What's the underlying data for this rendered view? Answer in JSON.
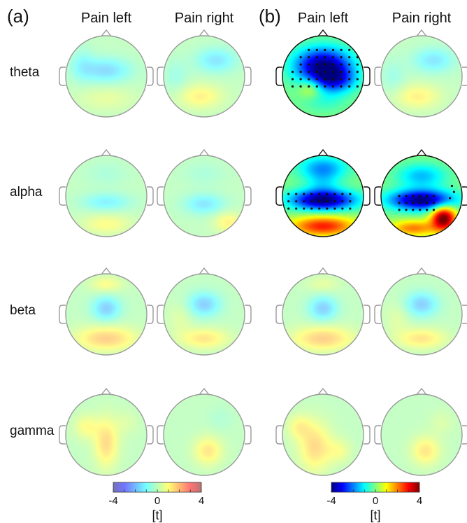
{
  "panels": [
    {
      "label": "(a)",
      "columns": [
        "Pain left",
        "Pain right"
      ]
    },
    {
      "label": "(b)",
      "columns": [
        "Pain left",
        "Pain right"
      ]
    }
  ],
  "rows": [
    "theta",
    "alpha",
    "beta",
    "gamma"
  ],
  "colorbar": {
    "ticks": [
      "-4",
      "0",
      "4"
    ],
    "unit": "[t]",
    "min": -4,
    "max": 4,
    "colormap": [
      "#00007f",
      "#0000ff",
      "#007fff",
      "#00ffff",
      "#7fff7f",
      "#ffff00",
      "#ff7f00",
      "#ff0000",
      "#7f0000"
    ]
  },
  "maps": [
    {
      "panel": 0,
      "row": 0,
      "col": 0,
      "significant": false,
      "blobs": [
        [
          0.0,
          -0.15,
          0.6,
          0.3,
          -1.6
        ],
        [
          0.0,
          0.55,
          0.7,
          0.3,
          0.6
        ],
        [
          -0.6,
          -0.3,
          0.3,
          0.4,
          -0.8
        ]
      ]
    },
    {
      "panel": 0,
      "row": 0,
      "col": 1,
      "significant": false,
      "blobs": [
        [
          0.3,
          -0.4,
          0.5,
          0.3,
          -1.4
        ],
        [
          -0.1,
          0.5,
          0.55,
          0.3,
          1.2
        ],
        [
          -0.7,
          0.0,
          0.3,
          0.4,
          -0.6
        ]
      ]
    },
    {
      "panel": 0,
      "row": 1,
      "col": 0,
      "significant": false,
      "blobs": [
        [
          0.0,
          0.15,
          0.6,
          0.22,
          -1.2
        ],
        [
          0.0,
          0.7,
          0.6,
          0.25,
          1.0
        ],
        [
          0.0,
          -0.55,
          0.5,
          0.3,
          -0.4
        ]
      ]
    },
    {
      "panel": 0,
      "row": 1,
      "col": 1,
      "significant": false,
      "blobs": [
        [
          0.0,
          0.2,
          0.5,
          0.25,
          -1.4
        ],
        [
          0.6,
          0.65,
          0.35,
          0.25,
          1.2
        ],
        [
          0.0,
          -0.55,
          0.5,
          0.3,
          -0.4
        ]
      ]
    },
    {
      "panel": 0,
      "row": 2,
      "col": 0,
      "significant": false,
      "blobs": [
        [
          0.0,
          -0.15,
          0.35,
          0.3,
          -1.8
        ],
        [
          0.0,
          0.6,
          0.75,
          0.3,
          1.8
        ],
        [
          0.0,
          -0.75,
          0.4,
          0.2,
          1.0
        ]
      ]
    },
    {
      "panel": 0,
      "row": 2,
      "col": 1,
      "significant": false,
      "blobs": [
        [
          0.0,
          -0.25,
          0.4,
          0.3,
          -1.8
        ],
        [
          0.0,
          0.6,
          0.6,
          0.25,
          1.4
        ],
        [
          -0.6,
          0.1,
          0.3,
          0.4,
          0.5
        ]
      ]
    },
    {
      "panel": 0,
      "row": 3,
      "col": 0,
      "significant": false,
      "blobs": [
        [
          0.0,
          0.2,
          0.3,
          0.6,
          1.6
        ],
        [
          -0.5,
          -0.2,
          0.3,
          0.3,
          1.0
        ],
        [
          0.5,
          -0.3,
          0.3,
          0.3,
          0.4
        ]
      ]
    },
    {
      "panel": 0,
      "row": 3,
      "col": 1,
      "significant": false,
      "blobs": [
        [
          0.1,
          0.4,
          0.35,
          0.35,
          1.4
        ],
        [
          0.4,
          -0.4,
          0.3,
          0.3,
          -0.3
        ]
      ]
    },
    {
      "panel": 1,
      "row": 0,
      "col": 0,
      "significant": true,
      "blobs": [
        [
          0.0,
          -0.25,
          0.7,
          0.45,
          -4.0
        ],
        [
          0.3,
          0.1,
          0.5,
          0.3,
          -2.0
        ],
        [
          -0.3,
          0.3,
          0.3,
          0.25,
          1.2
        ],
        [
          0.0,
          0.6,
          0.6,
          0.3,
          -0.6
        ]
      ]
    },
    {
      "panel": 1,
      "row": 0,
      "col": 1,
      "significant": false,
      "blobs": [
        [
          0.3,
          -0.4,
          0.5,
          0.3,
          -1.4
        ],
        [
          -0.1,
          0.5,
          0.55,
          0.3,
          1.2
        ],
        [
          -0.7,
          0.0,
          0.3,
          0.4,
          -0.6
        ]
      ]
    },
    {
      "panel": 1,
      "row": 1,
      "col": 0,
      "significant": true,
      "blobs": [
        [
          0.0,
          0.1,
          0.8,
          0.25,
          -4.0
        ],
        [
          0.0,
          -0.7,
          0.6,
          0.3,
          -1.8
        ],
        [
          0.0,
          0.75,
          0.8,
          0.25,
          2.8
        ],
        [
          0.0,
          -0.3,
          0.4,
          0.3,
          -0.8
        ]
      ]
    },
    {
      "panel": 1,
      "row": 1,
      "col": 1,
      "significant": true,
      "blobs": [
        [
          0.0,
          0.1,
          0.8,
          0.25,
          -4.0
        ],
        [
          0.0,
          -0.5,
          0.6,
          0.3,
          -1.5
        ],
        [
          0.55,
          0.55,
          0.3,
          0.3,
          4.2
        ],
        [
          -0.2,
          0.8,
          0.6,
          0.2,
          2.0
        ]
      ]
    },
    {
      "panel": 1,
      "row": 2,
      "col": 0,
      "significant": false,
      "blobs": [
        [
          0.0,
          -0.15,
          0.35,
          0.3,
          -1.8
        ],
        [
          0.0,
          0.6,
          0.75,
          0.3,
          1.8
        ],
        [
          0.0,
          -0.75,
          0.4,
          0.2,
          0.6
        ]
      ]
    },
    {
      "panel": 1,
      "row": 2,
      "col": 1,
      "significant": false,
      "blobs": [
        [
          0.0,
          -0.25,
          0.4,
          0.3,
          -1.8
        ],
        [
          0.0,
          0.6,
          0.6,
          0.25,
          1.4
        ],
        [
          -0.6,
          0.1,
          0.3,
          0.4,
          0.5
        ]
      ]
    },
    {
      "panel": 1,
      "row": 3,
      "col": 0,
      "significant": false,
      "blobs": [
        [
          -0.2,
          0.3,
          0.4,
          0.6,
          1.6
        ],
        [
          -0.6,
          -0.2,
          0.3,
          0.3,
          1.0
        ],
        [
          0.4,
          0.4,
          0.3,
          0.3,
          0.8
        ]
      ]
    },
    {
      "panel": 1,
      "row": 3,
      "col": 1,
      "significant": false,
      "blobs": [
        [
          0.1,
          0.4,
          0.35,
          0.35,
          1.4
        ],
        [
          0.5,
          -0.3,
          0.3,
          0.3,
          0.4
        ]
      ]
    }
  ]
}
